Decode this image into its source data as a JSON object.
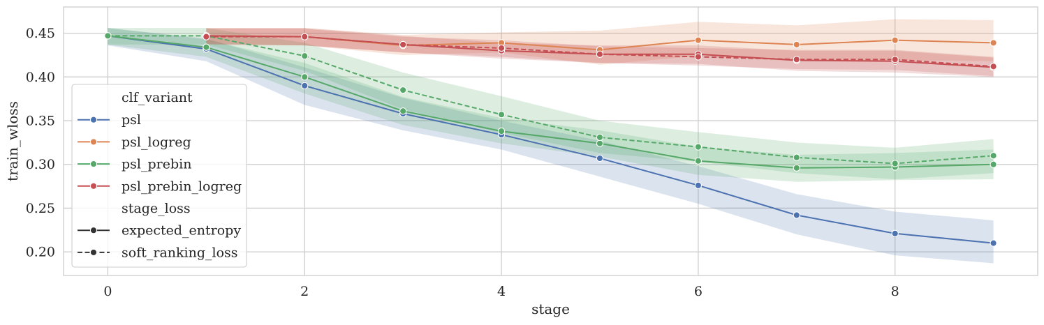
{
  "chart_data": {
    "type": "line",
    "xlabel": "stage",
    "ylabel": "train_wloss",
    "xlim": [
      -0.45,
      9.45
    ],
    "ylim": [
      0.173,
      0.48
    ],
    "xticks": [
      0,
      2,
      4,
      6,
      8
    ],
    "xtick_labels": [
      "0",
      "2",
      "4",
      "6",
      "8"
    ],
    "yticks": [
      0.2,
      0.25,
      0.3,
      0.35,
      0.4,
      0.45
    ],
    "ytick_labels": [
      "0.20",
      "0.25",
      "0.30",
      "0.35",
      "0.40",
      "0.45"
    ],
    "grid": true,
    "legend_placement": "lower-left",
    "legend": {
      "hue_title": "clf_variant",
      "hue_entries": [
        {
          "name": "psl",
          "color": "#4c72b0"
        },
        {
          "name": "psl_logreg",
          "color": "#dd8452"
        },
        {
          "name": "psl_prebin",
          "color": "#55a868"
        },
        {
          "name": "psl_prebin_logreg",
          "color": "#c44e52"
        }
      ],
      "style_title": "stage_loss",
      "style_entries": [
        {
          "name": "expected_entropy",
          "dash": "solid"
        },
        {
          "name": "soft_ranking_loss",
          "dash": "dashed"
        }
      ]
    },
    "series": [
      {
        "variant": "psl",
        "stage_loss": "expected_entropy",
        "color": "#4c72b0",
        "dash": "solid",
        "x": [
          0,
          1,
          2,
          3,
          4,
          5,
          6,
          7,
          8,
          9
        ],
        "y": [
          0.447,
          0.432,
          0.39,
          0.358,
          0.334,
          0.307,
          0.276,
          0.242,
          0.221,
          0.21
        ],
        "y_low": [
          0.436,
          0.418,
          0.368,
          0.339,
          0.317,
          0.286,
          0.255,
          0.22,
          0.196,
          0.187
        ],
        "y_high": [
          0.456,
          0.444,
          0.411,
          0.376,
          0.35,
          0.327,
          0.298,
          0.266,
          0.246,
          0.236
        ]
      },
      {
        "variant": "psl_logreg",
        "stage_loss": "expected_entropy",
        "color": "#dd8452",
        "dash": "solid",
        "x": [
          1,
          2,
          3,
          4,
          5,
          6,
          7,
          8,
          9
        ],
        "y": [
          0.447,
          0.446,
          0.436,
          0.439,
          0.431,
          0.442,
          0.437,
          0.442,
          0.439
        ],
        "y_low": [
          0.437,
          0.436,
          0.425,
          0.428,
          0.414,
          0.424,
          0.418,
          0.419,
          0.418
        ],
        "y_high": [
          0.456,
          0.456,
          0.448,
          0.451,
          0.453,
          0.463,
          0.459,
          0.466,
          0.465
        ]
      },
      {
        "variant": "psl_prebin",
        "stage_loss": "expected_entropy",
        "color": "#55a868",
        "dash": "solid",
        "x": [
          0,
          1,
          2,
          3,
          4,
          5,
          6,
          7,
          8,
          9
        ],
        "y": [
          0.447,
          0.434,
          0.4,
          0.361,
          0.338,
          0.324,
          0.304,
          0.296,
          0.297,
          0.3
        ],
        "y_low": [
          0.437,
          0.423,
          0.381,
          0.345,
          0.324,
          0.309,
          0.288,
          0.28,
          0.282,
          0.283
        ],
        "y_high": [
          0.456,
          0.443,
          0.416,
          0.377,
          0.353,
          0.339,
          0.32,
          0.311,
          0.313,
          0.317
        ]
      },
      {
        "variant": "psl_prebin",
        "stage_loss": "soft_ranking_loss",
        "color": "#55a868",
        "dash": "dashed",
        "x": [
          0,
          1,
          2,
          3,
          4,
          5,
          6,
          7,
          8,
          9
        ],
        "y": [
          0.447,
          0.447,
          0.424,
          0.385,
          0.357,
          0.331,
          0.32,
          0.308,
          0.301,
          0.31
        ],
        "y_low": [
          0.437,
          0.437,
          0.407,
          0.363,
          0.336,
          0.313,
          0.303,
          0.29,
          0.283,
          0.29
        ],
        "y_high": [
          0.456,
          0.456,
          0.439,
          0.405,
          0.378,
          0.35,
          0.337,
          0.325,
          0.319,
          0.329
        ]
      },
      {
        "variant": "psl_prebin_logreg",
        "stage_loss": "expected_entropy",
        "color": "#c44e52",
        "dash": "solid",
        "x": [
          1,
          2,
          3,
          4,
          5,
          6,
          7,
          8,
          9
        ],
        "y": [
          0.447,
          0.446,
          0.437,
          0.43,
          0.426,
          0.426,
          0.419,
          0.418,
          0.411
        ],
        "y_low": [
          0.438,
          0.436,
          0.428,
          0.421,
          0.416,
          0.415,
          0.407,
          0.405,
          0.4
        ],
        "y_high": [
          0.456,
          0.456,
          0.447,
          0.439,
          0.436,
          0.436,
          0.43,
          0.43,
          0.422
        ]
      },
      {
        "variant": "psl_prebin_logreg",
        "stage_loss": "soft_ranking_loss",
        "color": "#c44e52",
        "dash": "dashed",
        "x": [
          1,
          2,
          3,
          4,
          5,
          6,
          7,
          8,
          9
        ],
        "y": [
          0.446,
          0.446,
          0.437,
          0.433,
          0.426,
          0.423,
          0.42,
          0.42,
          0.412
        ],
        "y_low": [
          0.437,
          0.436,
          0.428,
          0.423,
          0.416,
          0.413,
          0.409,
          0.408,
          0.401
        ],
        "y_high": [
          0.455,
          0.455,
          0.446,
          0.442,
          0.435,
          0.433,
          0.431,
          0.431,
          0.423
        ]
      }
    ]
  }
}
